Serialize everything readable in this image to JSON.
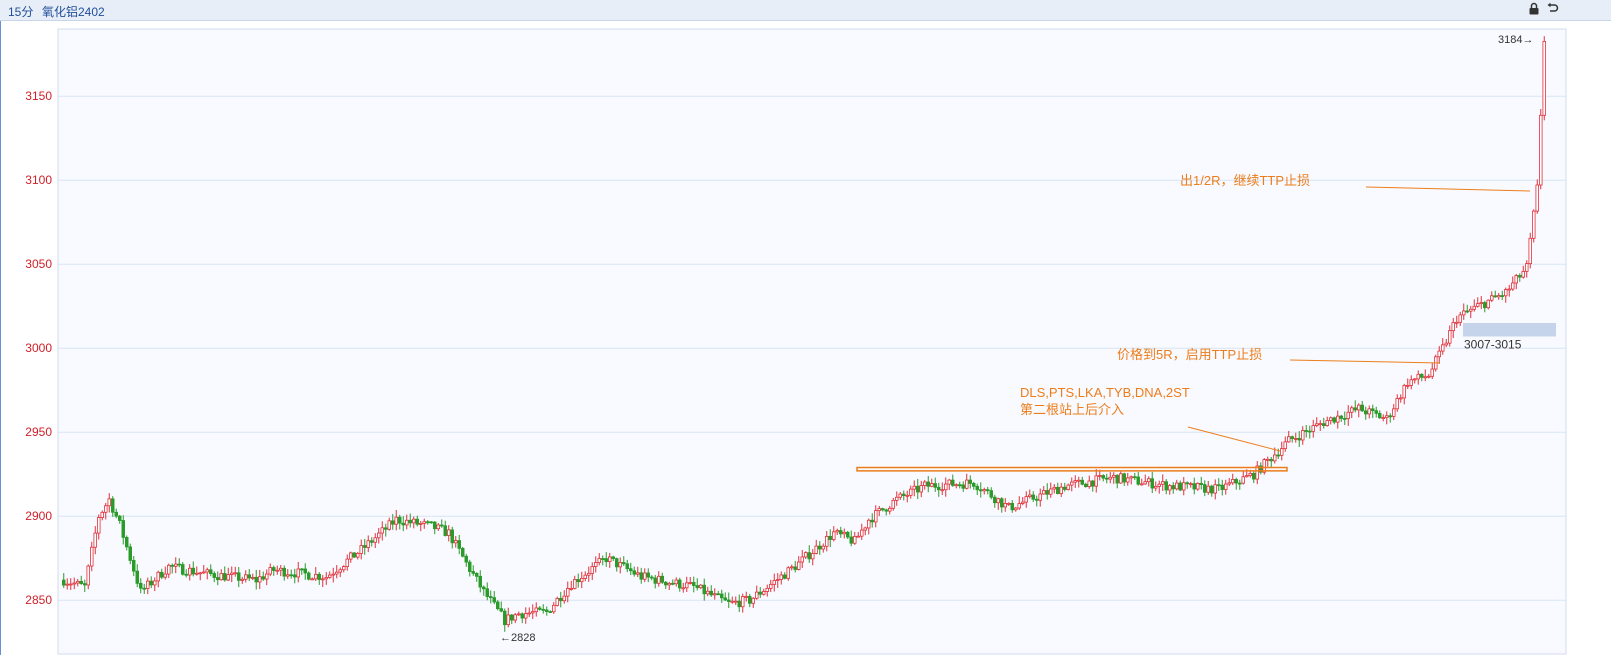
{
  "header": {
    "period_label": "15分",
    "symbol_label": "氧化铝2402",
    "lock_icon": "lock-icon",
    "undo_icon": "undo-icon"
  },
  "colors": {
    "up": "#e0303a",
    "down": "#2a9b2a",
    "grid": "#d7e3f3",
    "axis_text": "#d11f28",
    "annotation": "#ed7d1b",
    "zone": "#c5d4ea",
    "plot_bg": "#f8faff"
  },
  "chart_data": {
    "type": "candlestick",
    "ylim": [
      2818,
      3190
    ],
    "yticks": [
      2850,
      2900,
      2950,
      3000,
      3050,
      3100,
      3150
    ],
    "grid": true,
    "price_path": [
      [
        0,
        2862
      ],
      [
        6,
        2858
      ],
      [
        10,
        2900
      ],
      [
        13,
        2910
      ],
      [
        16,
        2895
      ],
      [
        22,
        2855
      ],
      [
        30,
        2870
      ],
      [
        40,
        2866
      ],
      [
        55,
        2862
      ],
      [
        60,
        2868
      ],
      [
        75,
        2864
      ],
      [
        85,
        2880
      ],
      [
        95,
        2898
      ],
      [
        105,
        2894
      ],
      [
        110,
        2890
      ],
      [
        115,
        2872
      ],
      [
        120,
        2855
      ],
      [
        126,
        2838
      ],
      [
        130,
        2842
      ],
      [
        138,
        2843
      ],
      [
        145,
        2860
      ],
      [
        155,
        2875
      ],
      [
        165,
        2864
      ],
      [
        180,
        2858
      ],
      [
        190,
        2848
      ],
      [
        196,
        2850
      ],
      [
        210,
        2872
      ],
      [
        220,
        2890
      ],
      [
        226,
        2885
      ],
      [
        230,
        2898
      ],
      [
        238,
        2910
      ],
      [
        246,
        2918
      ],
      [
        260,
        2920
      ],
      [
        270,
        2905
      ],
      [
        276,
        2910
      ],
      [
        286,
        2918
      ],
      [
        300,
        2923
      ],
      [
        316,
        2918
      ],
      [
        330,
        2916
      ],
      [
        340,
        2925
      ],
      [
        350,
        2945
      ],
      [
        360,
        2956
      ],
      [
        370,
        2964
      ],
      [
        378,
        2958
      ],
      [
        384,
        2980
      ],
      [
        390,
        2984
      ],
      [
        394,
        3000
      ],
      [
        398,
        3018
      ],
      [
        404,
        3025
      ],
      [
        412,
        3033
      ],
      [
        418,
        3048
      ],
      [
        421,
        3095
      ],
      [
        423,
        3184
      ]
    ],
    "extremes": {
      "low": {
        "value": 2828,
        "label": "←2828"
      },
      "high": {
        "value": 3184,
        "label": "3184→"
      }
    },
    "zone": {
      "from": 3007,
      "to": 3015,
      "label": "3007-3015"
    },
    "range_box": {
      "from": 2927,
      "to": 2929
    },
    "annotations": {
      "entry_line1": "DLS,PTS,LKA,TYB,DNA,2ST",
      "entry_line2": "第二根站上后介入",
      "ttp_start": "价格到5R，启用TTP止损",
      "half_r": "出1/2R，继续TTP止损"
    }
  }
}
